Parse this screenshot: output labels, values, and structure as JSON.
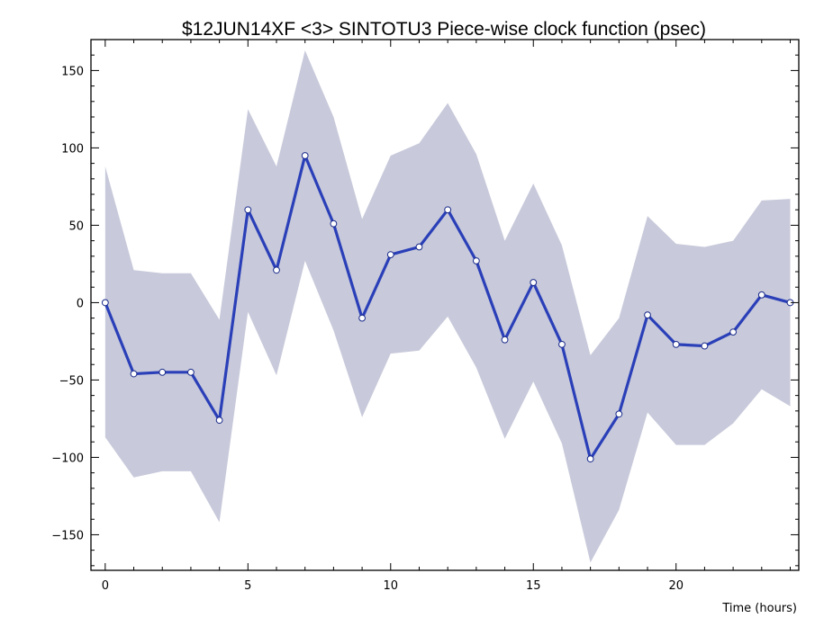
{
  "chart_data": {
    "type": "line",
    "title": "$12JUN14XF <3>  SINTOTU3  Piece-wise clock function (psec)",
    "xlabel": "Time (hours)",
    "ylabel": "",
    "xlim": [
      -0.5,
      24.3
    ],
    "ylim": [
      -173,
      170
    ],
    "xticks": [
      0,
      5,
      10,
      15,
      20
    ],
    "yticks": [
      -150,
      -100,
      -50,
      0,
      50,
      100,
      150
    ],
    "grid": false,
    "colors": {
      "line": "#2a3fb8",
      "band": "#c8cadb",
      "marker_fill": "#ffffff"
    },
    "x": [
      0,
      1,
      2,
      3,
      4,
      5,
      6,
      7,
      8,
      9,
      10,
      11,
      12,
      13,
      14,
      15,
      16,
      17,
      18,
      19,
      20,
      21,
      22,
      23,
      24
    ],
    "series": [
      {
        "name": "",
        "values": [
          0,
          -46,
          -45,
          -45,
          -76,
          60,
          21,
          95,
          51,
          -10,
          31,
          36,
          60,
          27,
          -24,
          13,
          -27,
          -101,
          -72,
          -8,
          -27,
          -28,
          -19,
          5,
          0
        ]
      }
    ],
    "band": {
      "upper": [
        88,
        21,
        19,
        19,
        -11,
        125,
        88,
        163,
        120,
        54,
        95,
        103,
        129,
        96,
        40,
        77,
        37,
        -34,
        -10,
        56,
        38,
        36,
        40,
        66,
        67
      ],
      "lower": [
        -87,
        -113,
        -109,
        -109,
        -142,
        -6,
        -47,
        27,
        -18,
        -74,
        -33,
        -31,
        -9,
        -42,
        -88,
        -51,
        -91,
        -168,
        -134,
        -71,
        -92,
        -92,
        -78,
        -56,
        -67
      ]
    }
  }
}
